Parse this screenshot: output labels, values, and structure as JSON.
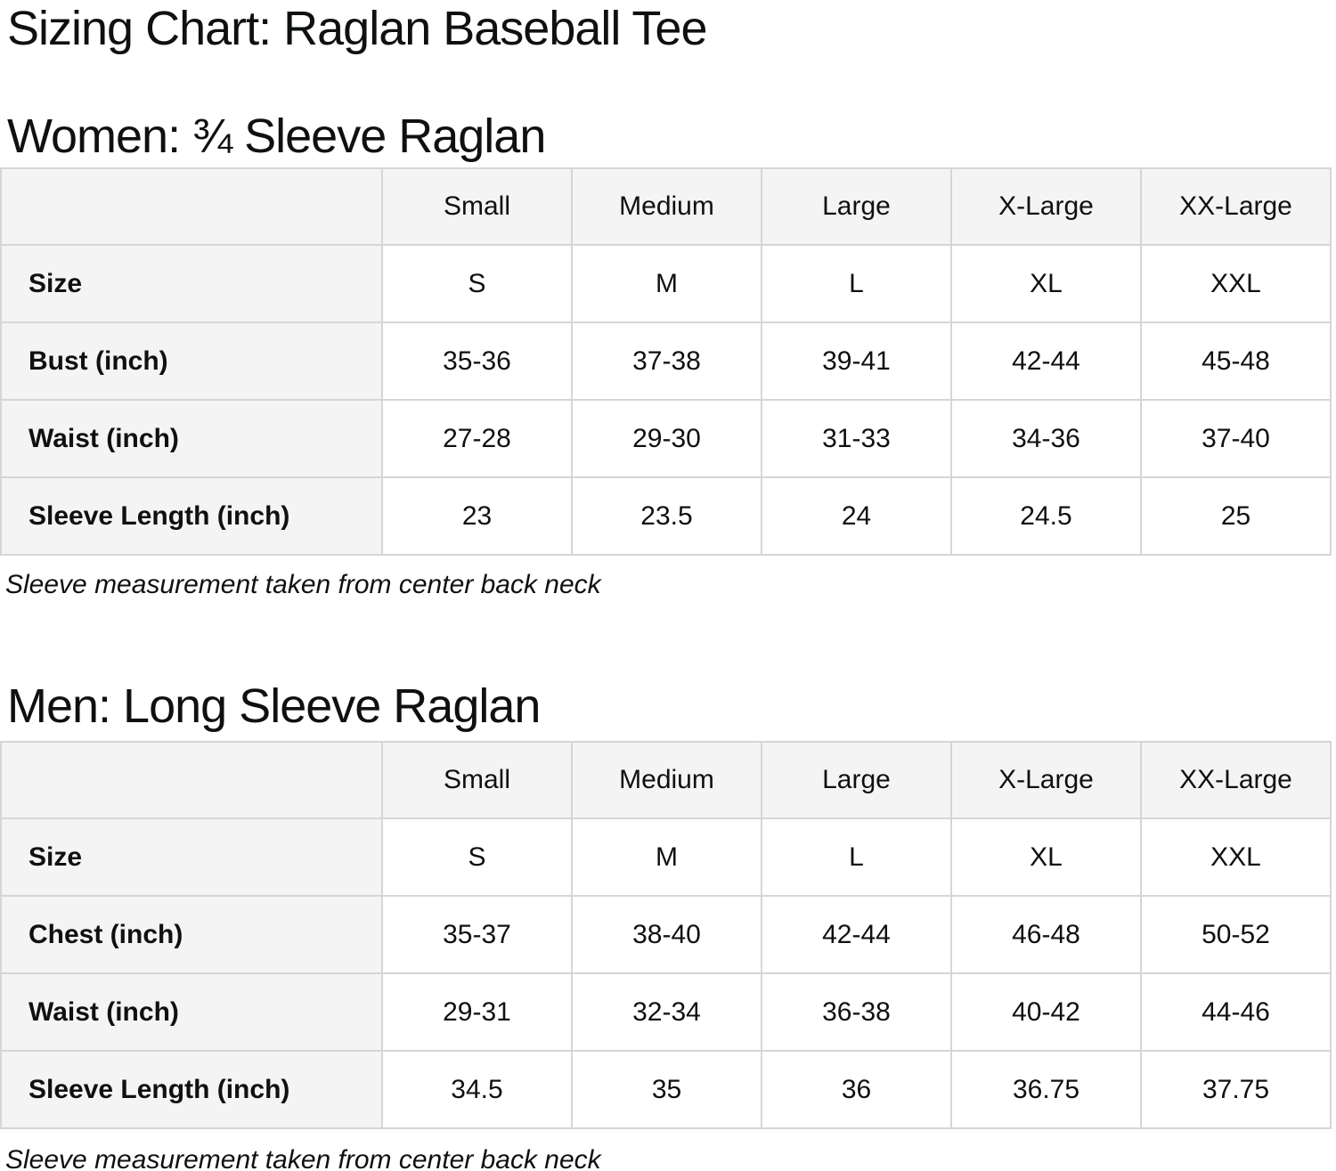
{
  "page_title": "Sizing Chart: Raglan Baseball Tee",
  "colors": {
    "table_header_bg": "#f4f4f4",
    "table_border": "#d6d6d6",
    "cell_bg": "#ffffff",
    "text": "#0f1111"
  },
  "sections": [
    {
      "heading": "Women: ¾ Sleeve Raglan",
      "note": "Sleeve measurement taken from center back neck",
      "table": {
        "columns": [
          "",
          "Small",
          "Medium",
          "Large",
          "X-Large",
          "XX-Large"
        ],
        "rows": [
          {
            "label": "Size",
            "values": [
              "S",
              "M",
              "L",
              "XL",
              "XXL"
            ]
          },
          {
            "label": "Bust (inch)",
            "values": [
              "35-36",
              "37-38",
              "39-41",
              "42-44",
              "45-48"
            ]
          },
          {
            "label": "Waist (inch)",
            "values": [
              "27-28",
              "29-30",
              "31-33",
              "34-36",
              "37-40"
            ]
          },
          {
            "label": "Sleeve Length (inch)",
            "values": [
              "23",
              "23.5",
              "24",
              "24.5",
              "25"
            ]
          }
        ]
      }
    },
    {
      "heading": "Men: Long Sleeve Raglan",
      "note": "Sleeve measurement taken from center back neck",
      "table": {
        "columns": [
          "",
          "Small",
          "Medium",
          "Large",
          "X-Large",
          "XX-Large"
        ],
        "rows": [
          {
            "label": "Size",
            "values": [
              "S",
              "M",
              "L",
              "XL",
              "XXL"
            ]
          },
          {
            "label": "Chest (inch)",
            "values": [
              "35-37",
              "38-40",
              "42-44",
              "46-48",
              "50-52"
            ]
          },
          {
            "label": "Waist (inch)",
            "values": [
              "29-31",
              "32-34",
              "36-38",
              "40-42",
              "44-46"
            ]
          },
          {
            "label": "Sleeve Length (inch)",
            "values": [
              "34.5",
              "35",
              "36",
              "36.75",
              "37.75"
            ]
          }
        ]
      }
    }
  ]
}
